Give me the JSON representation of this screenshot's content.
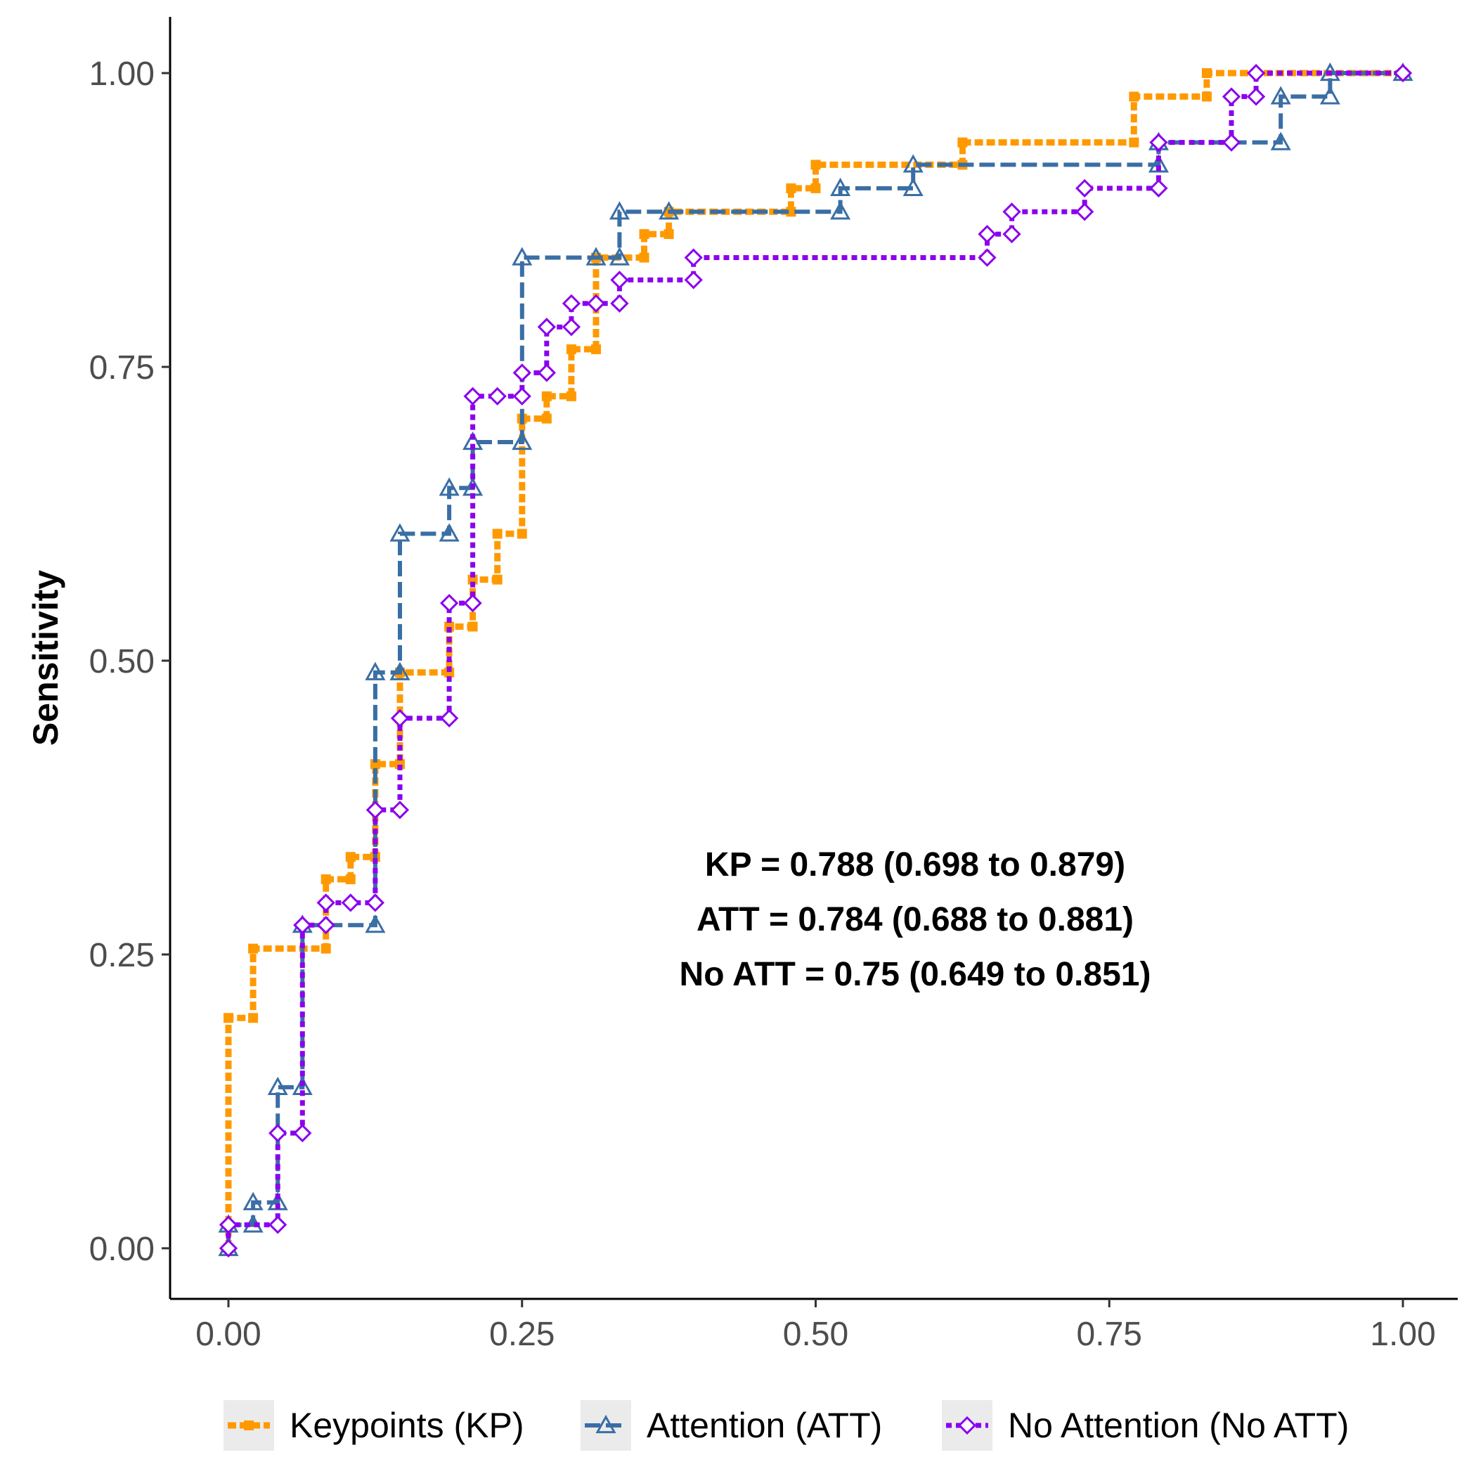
{
  "chart_data": {
    "type": "line",
    "xlabel": "",
    "ylabel": "Sensitivity",
    "xlim": [
      0,
      1
    ],
    "ylim": [
      0,
      1
    ],
    "x_ticks": [
      "0.00",
      "0.25",
      "0.50",
      "0.75",
      "1.00"
    ],
    "y_ticks": [
      "0.00",
      "0.25",
      "0.50",
      "0.75",
      "1.00"
    ],
    "grid": false,
    "legend_position": "bottom",
    "annotations": [
      "KP = 0.788 (0.698 to 0.879)",
      "ATT = 0.784 (0.688 to 0.881)",
      "No ATT = 0.75 (0.649 to 0.851)"
    ],
    "series": [
      {
        "name": "Keypoints (KP)",
        "color": "#FF9900",
        "marker": "square",
        "x": [
          0.0,
          0.0,
          0.021,
          0.021,
          0.083,
          0.083,
          0.104,
          0.104,
          0.125,
          0.125,
          0.146,
          0.146,
          0.188,
          0.188,
          0.208,
          0.208,
          0.229,
          0.229,
          0.25,
          0.25,
          0.271,
          0.271,
          0.292,
          0.292,
          0.313,
          0.313,
          0.354,
          0.354,
          0.375,
          0.375,
          0.479,
          0.479,
          0.5,
          0.5,
          0.625,
          0.625,
          0.771,
          0.771,
          0.833,
          0.833,
          1.0
        ],
        "y": [
          0.0,
          0.196,
          0.196,
          0.255,
          0.255,
          0.314,
          0.314,
          0.333,
          0.333,
          0.412,
          0.412,
          0.49,
          0.49,
          0.529,
          0.529,
          0.569,
          0.569,
          0.608,
          0.608,
          0.706,
          0.706,
          0.725,
          0.725,
          0.765,
          0.765,
          0.843,
          0.843,
          0.863,
          0.863,
          0.882,
          0.882,
          0.902,
          0.902,
          0.922,
          0.922,
          0.941,
          0.941,
          0.98,
          0.98,
          1.0,
          1.0
        ]
      },
      {
        "name": "Attention (ATT)",
        "color": "#3A6EA5",
        "marker": "triangle",
        "x": [
          0.0,
          0.0,
          0.021,
          0.021,
          0.042,
          0.042,
          0.063,
          0.063,
          0.125,
          0.125,
          0.146,
          0.146,
          0.188,
          0.188,
          0.208,
          0.208,
          0.25,
          0.25,
          0.313,
          0.313,
          0.333,
          0.333,
          0.375,
          0.375,
          0.521,
          0.521,
          0.583,
          0.583,
          0.792,
          0.792,
          0.896,
          0.896,
          0.938,
          0.938,
          1.0
        ],
        "y": [
          0.0,
          0.02,
          0.02,
          0.039,
          0.039,
          0.137,
          0.137,
          0.275,
          0.275,
          0.49,
          0.49,
          0.608,
          0.608,
          0.647,
          0.647,
          0.686,
          0.686,
          0.843,
          0.843,
          0.843,
          0.843,
          0.882,
          0.882,
          0.882,
          0.882,
          0.902,
          0.902,
          0.922,
          0.922,
          0.941,
          0.941,
          0.98,
          0.98,
          1.0,
          1.0
        ]
      },
      {
        "name": "No Attention (No ATT)",
        "color": "#8B00EE",
        "marker": "diamond",
        "x": [
          0.0,
          0.0,
          0.042,
          0.042,
          0.063,
          0.063,
          0.083,
          0.083,
          0.104,
          0.104,
          0.125,
          0.125,
          0.146,
          0.146,
          0.188,
          0.188,
          0.208,
          0.208,
          0.229,
          0.229,
          0.25,
          0.25,
          0.271,
          0.271,
          0.292,
          0.292,
          0.313,
          0.313,
          0.333,
          0.333,
          0.396,
          0.396,
          0.646,
          0.646,
          0.667,
          0.667,
          0.729,
          0.729,
          0.792,
          0.792,
          0.854,
          0.854,
          0.875,
          0.875,
          1.0
        ],
        "y": [
          0.0,
          0.02,
          0.02,
          0.098,
          0.098,
          0.275,
          0.275,
          0.294,
          0.294,
          0.294,
          0.294,
          0.373,
          0.373,
          0.451,
          0.451,
          0.549,
          0.549,
          0.725,
          0.725,
          0.725,
          0.725,
          0.745,
          0.745,
          0.784,
          0.784,
          0.804,
          0.804,
          0.804,
          0.804,
          0.824,
          0.824,
          0.843,
          0.843,
          0.863,
          0.863,
          0.882,
          0.882,
          0.902,
          0.902,
          0.941,
          0.941,
          0.98,
          0.98,
          1.0,
          1.0
        ]
      }
    ]
  }
}
